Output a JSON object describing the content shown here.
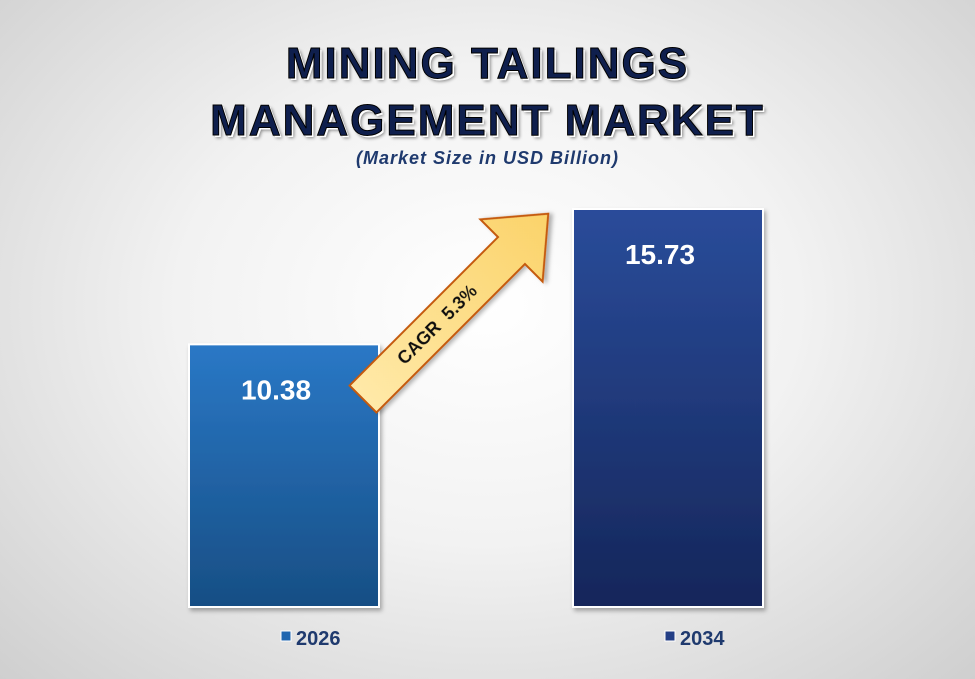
{
  "chart_data": {
    "type": "bar",
    "title_line1": "MINING TAILINGS",
    "title_line2": "MANAGEMENT MARKET",
    "subtitle": "(Market Size in USD Billion)",
    "categories": [
      "2026",
      "2034"
    ],
    "values": [
      10.38,
      15.73
    ],
    "value_labels": [
      "10.38",
      "15.73"
    ],
    "colors": [
      "#2167b0",
      "#243f86"
    ],
    "annotation": "CAGR  5.3%",
    "legend_position": "bottom",
    "grid": false
  }
}
